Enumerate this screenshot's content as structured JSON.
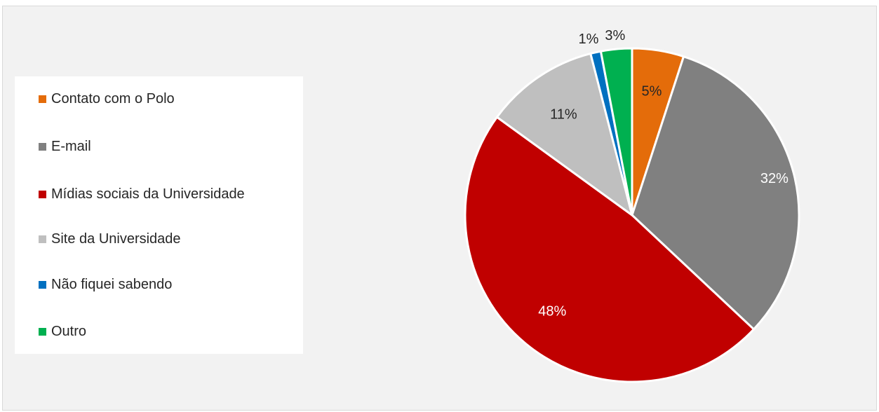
{
  "chart_data": {
    "type": "pie",
    "title": "",
    "start_angle_deg": 0,
    "direction": "clockwise",
    "slices": [
      {
        "name": "Contato com o Polo",
        "value": 5,
        "label": "5%",
        "color": "#e46c0a",
        "label_color": "#262626"
      },
      {
        "name": "E-mail",
        "value": 32,
        "label": "32%",
        "color": "#808080",
        "label_color": "#ffffff"
      },
      {
        "name": "Mídias sociais da Universidade",
        "value": 48,
        "label": "48%",
        "color": "#c00000",
        "label_color": "#ffffff"
      },
      {
        "name": "Site da Universidade",
        "value": 11,
        "label": "11%",
        "color": "#bfbfbf",
        "label_color": "#262626"
      },
      {
        "name": "Não fiquei sabendo",
        "value": 1,
        "label": "1%",
        "color": "#0070c0",
        "label_color": "#262626"
      },
      {
        "name": "Outro",
        "value": 3,
        "label": "3%",
        "color": "#00b050",
        "label_color": "#262626"
      }
    ],
    "legend_position": "left",
    "background_color": "#f2f2f2"
  }
}
